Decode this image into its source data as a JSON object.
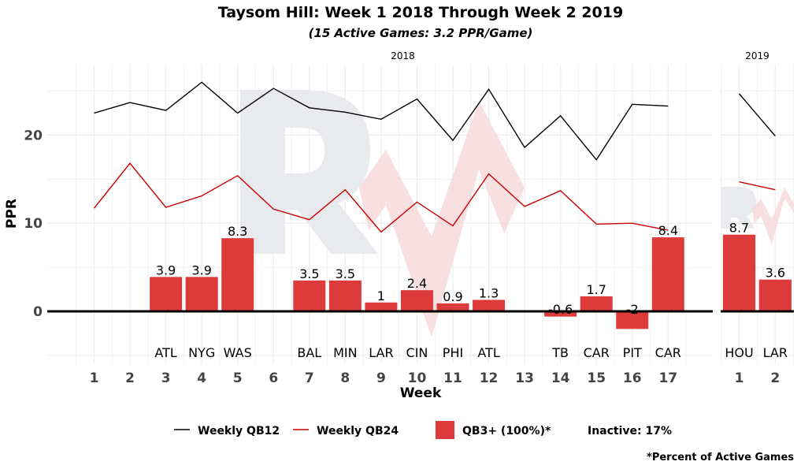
{
  "title": "Taysom Hill: Week 1 2018 Through Week 2 2019",
  "subtitle": "(15 Active Games: 3.2 PPR/Game)",
  "footnote": "*Percent of Active Games",
  "legend": {
    "qb12": "Weekly QB12",
    "qb24": "Weekly QB24",
    "bar": "QB3+ (100%)*",
    "inactive": "Inactive: 17%"
  },
  "colors": {
    "bar": "#dd3b3b",
    "qb12": "#000000",
    "qb24": "#cc0000",
    "grid": "#ebebeb",
    "watermark_gray": "#e9eaed",
    "watermark_red": "#f7dada"
  },
  "chart_data": {
    "type": "bar",
    "xlabel": "Week",
    "ylabel": "PPR",
    "ylim": [
      -6,
      28
    ],
    "yticks": [
      0,
      10,
      20
    ],
    "legend_position": "bottom",
    "grid": true,
    "panels": [
      {
        "label": "2018",
        "weeks": [
          1,
          2,
          3,
          4,
          5,
          6,
          7,
          8,
          9,
          10,
          11,
          12,
          13,
          14,
          15,
          16,
          17
        ],
        "opponents": [
          "",
          "",
          "ATL",
          "NYG",
          "WAS",
          "",
          "BAL",
          "MIN",
          "LAR",
          "CIN",
          "PHI",
          "ATL",
          "",
          "TB",
          "CAR",
          "PIT",
          "CAR"
        ],
        "ppr": [
          null,
          null,
          3.9,
          3.9,
          8.3,
          null,
          3.5,
          3.5,
          1,
          2.4,
          0.9,
          1.3,
          null,
          -0.6,
          1.7,
          -2,
          8.4
        ],
        "labels": [
          "",
          "",
          "3.9",
          "3.9",
          "8.3",
          "",
          "3.5",
          "3.5",
          "1",
          "2.4",
          "0.9",
          "1.3",
          "",
          "-0.6",
          "1.7",
          "-2",
          "8.4"
        ],
        "qb12": [
          22.5,
          23.7,
          22.8,
          26.0,
          22.5,
          25.3,
          23.1,
          22.6,
          21.8,
          24.1,
          19.4,
          25.2,
          18.6,
          22.2,
          17.2,
          23.5,
          23.3
        ],
        "qb24": [
          11.7,
          16.8,
          11.8,
          13.1,
          15.4,
          11.6,
          10.4,
          13.8,
          9.0,
          12.4,
          9.7,
          15.6,
          11.9,
          13.7,
          9.9,
          10.0,
          9.2
        ]
      },
      {
        "label": "2019",
        "weeks": [
          1,
          2
        ],
        "opponents": [
          "HOU",
          "LAR"
        ],
        "ppr": [
          8.7,
          3.6
        ],
        "labels": [
          "8.7",
          "3.6"
        ],
        "qb12": [
          24.7,
          19.9
        ],
        "qb24": [
          14.7,
          13.8
        ]
      }
    ]
  }
}
